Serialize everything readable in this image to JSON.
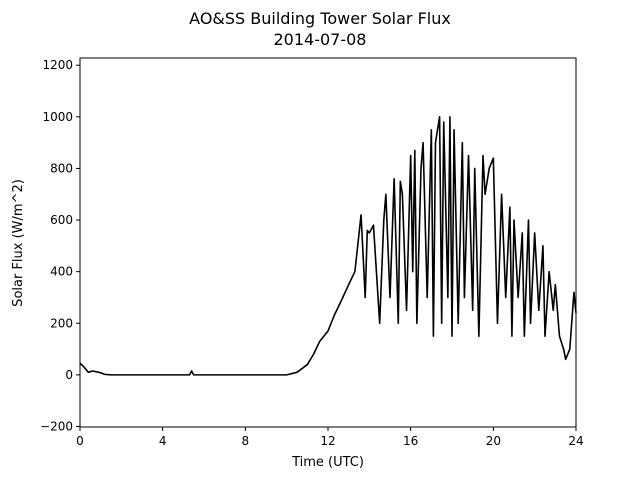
{
  "chart_data": {
    "type": "line",
    "title": "AO&SS Building Tower Solar Flux",
    "subtitle": "2014-07-08",
    "x_label": "Time (UTC)",
    "y_label": "Solar Flux (W/m^2)",
    "xlim": [
      0,
      24
    ],
    "xticks": [
      0,
      4,
      8,
      12,
      16,
      20,
      24
    ],
    "ylim": [
      -202,
      1228
    ],
    "yticks": [
      {
        "value": -200,
        "label": "−200"
      },
      0,
      200,
      400,
      600,
      800,
      1000,
      1200
    ],
    "grid": false,
    "series": [
      {
        "name": "Solar Flux",
        "color": "#000000",
        "x": [
          0,
          0.2,
          0.4,
          0.6,
          0.8,
          1.0,
          1.2,
          1.5,
          2,
          4,
          5.3,
          5.4,
          5.5,
          6,
          8,
          10,
          10.5,
          11,
          11.3,
          11.6,
          12,
          12.3,
          12.6,
          13,
          13.3,
          13.6,
          13.8,
          13.9,
          14,
          14.2,
          14.5,
          14.7,
          14.8,
          15,
          15.2,
          15.4,
          15.5,
          15.6,
          15.8,
          16,
          16.1,
          16.2,
          16.3,
          16.5,
          16.6,
          16.8,
          17,
          17.1,
          17.2,
          17.4,
          17.5,
          17.6,
          17.8,
          17.9,
          18,
          18.1,
          18.3,
          18.5,
          18.6,
          18.8,
          19,
          19.1,
          19.3,
          19.5,
          19.6,
          19.8,
          20,
          20.2,
          20.4,
          20.6,
          20.8,
          20.9,
          21,
          21.2,
          21.4,
          21.5,
          21.7,
          21.8,
          22,
          22.2,
          22.4,
          22.5,
          22.7,
          22.9,
          23,
          23.2,
          23.4,
          23.5,
          23.7,
          23.9,
          24
        ],
        "values": [
          45,
          30,
          10,
          15,
          12,
          8,
          2,
          0,
          0,
          0,
          0,
          15,
          0,
          0,
          0,
          0,
          10,
          40,
          80,
          130,
          170,
          230,
          280,
          350,
          400,
          620,
          300,
          560,
          550,
          580,
          200,
          600,
          700,
          300,
          760,
          200,
          750,
          700,
          250,
          850,
          400,
          870,
          200,
          800,
          900,
          300,
          950,
          150,
          900,
          1000,
          200,
          980,
          300,
          1000,
          150,
          950,
          200,
          900,
          300,
          850,
          250,
          800,
          150,
          850,
          700,
          800,
          840,
          200,
          700,
          300,
          650,
          150,
          600,
          300,
          550,
          150,
          600,
          200,
          550,
          250,
          500,
          150,
          400,
          250,
          350,
          150,
          100,
          60,
          100,
          320,
          240
        ]
      }
    ]
  }
}
